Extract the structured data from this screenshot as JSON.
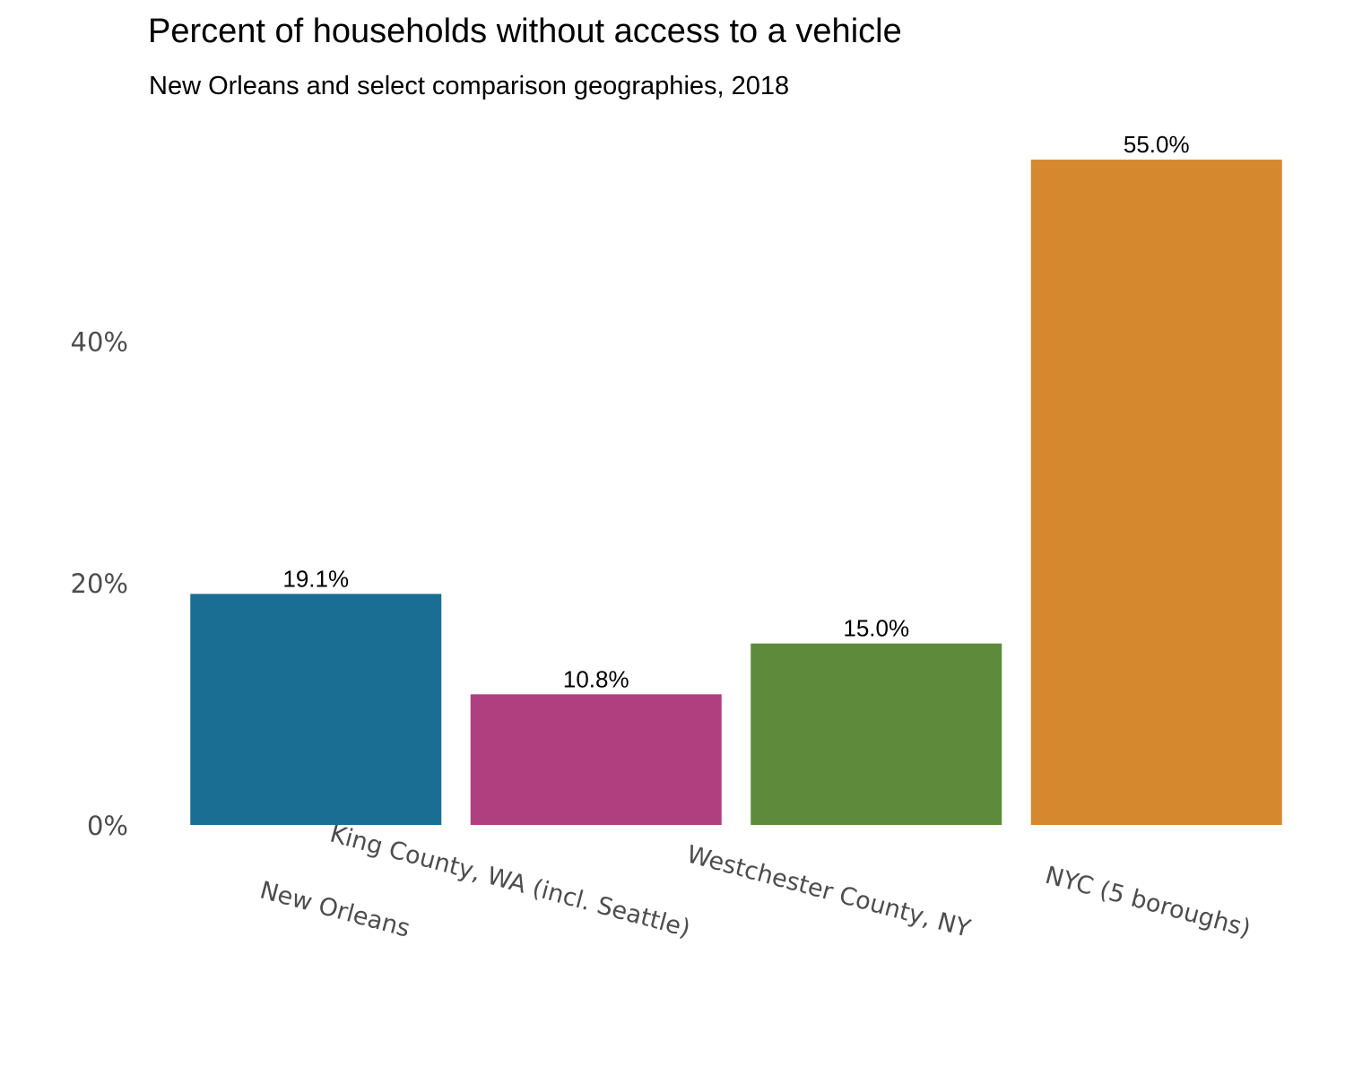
{
  "chart_data": {
    "type": "bar",
    "title": "Percent of households without access to a vehicle",
    "subtitle": "New Orleans and select comparison geographies, 2018",
    "xlabel": "",
    "ylabel": "",
    "categories": [
      "New Orleans",
      "King County, WA (incl. Seattle)",
      "Westchester County, NY",
      "NYC (5 boroughs)"
    ],
    "values": [
      19.1,
      10.8,
      15.0,
      55.0
    ],
    "data_labels": [
      "19.1%",
      "10.8%",
      "15.0%",
      "55.0%"
    ],
    "colors": [
      "#1a6e94",
      "#b03f7f",
      "#5e8a3c",
      "#d6882e"
    ],
    "ylim": [
      0,
      57
    ],
    "yticks": [
      0,
      20,
      40
    ],
    "ytick_labels": [
      "0%",
      "20%",
      "40%"
    ],
    "grid": false,
    "legend": "none"
  }
}
